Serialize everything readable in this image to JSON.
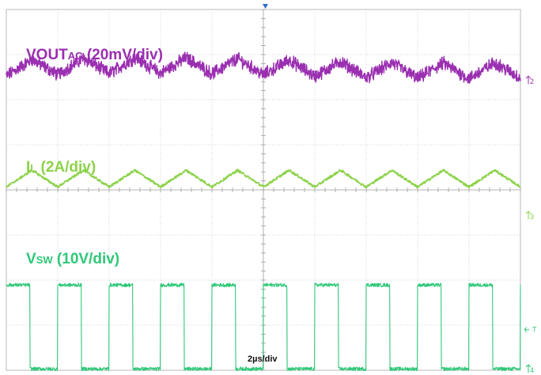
{
  "chart_data": {
    "type": "line",
    "title": "",
    "xlabel": "2µs/div",
    "ylabel": "",
    "x_divisions": 10,
    "y_divisions": 8,
    "grid": true,
    "series": [
      {
        "name": "VOUT_AC (20mV/div)",
        "label_main": "VOUT",
        "label_sub": "AC",
        "label_rest": " (20mV/div)",
        "color": "#9a2fb0",
        "channel": "2",
        "waveform": "triangle_ripple",
        "period_div": 1.0,
        "peak_to_peak_div": 0.35,
        "noise_div": 0.12,
        "offset_div": 6.7,
        "marker_div": 6.4
      },
      {
        "name": "I_L (2A/div)",
        "label_main": "I",
        "label_sub": "L",
        "label_rest": " (2A/div)",
        "color": "#8cd24a",
        "channel": "3",
        "waveform": "triangle",
        "period_div": 1.0,
        "peak_to_peak_div": 0.37,
        "noise_div": 0.03,
        "offset_div": 4.25,
        "marker_div": 3.4
      },
      {
        "name": "V_SW (10V/div)",
        "label_main": "V",
        "label_sub": "SW",
        "label_rest": " (10V/div)",
        "color": "#2ec878",
        "channel": "4",
        "waveform": "square",
        "period_div": 1.0,
        "duty": 0.46,
        "high_div": 1.89,
        "low_div": 0.03,
        "noise_div": 0.04,
        "offset_div": 0.0,
        "marker_div": 0.0
      }
    ],
    "trigger_marker": "T",
    "trigger_level_div": 0.9
  }
}
